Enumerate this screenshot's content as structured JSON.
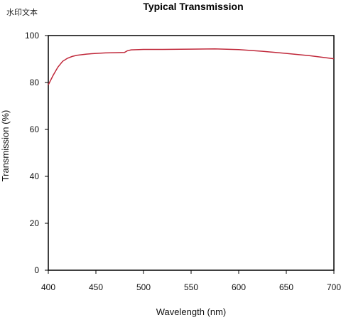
{
  "watermark": "水印文本",
  "chart_data": {
    "type": "line",
    "title": "Typical Transmission",
    "xlabel": "Wavelength (nm)",
    "ylabel": "Transmission (%)",
    "xlim": [
      400,
      700
    ],
    "ylim": [
      0,
      100
    ],
    "xticks": [
      400,
      450,
      500,
      550,
      600,
      650,
      700
    ],
    "yticks": [
      0,
      20,
      40,
      60,
      80,
      100
    ],
    "grid": false,
    "line_color": "#c0283a",
    "series": [
      {
        "x": [
          400,
          405,
          410,
          415,
          420,
          425,
          430,
          440,
          450,
          460,
          470,
          480,
          483,
          487,
          495,
          500,
          520,
          550,
          575,
          600,
          625,
          650,
          675,
          700
        ],
        "y": [
          79.0,
          83.0,
          86.5,
          89.0,
          90.3,
          91.1,
          91.6,
          92.1,
          92.4,
          92.6,
          92.7,
          92.8,
          93.5,
          93.9,
          94.0,
          94.1,
          94.1,
          94.2,
          94.3,
          94.0,
          93.3,
          92.4,
          91.4,
          90.1
        ]
      }
    ]
  }
}
